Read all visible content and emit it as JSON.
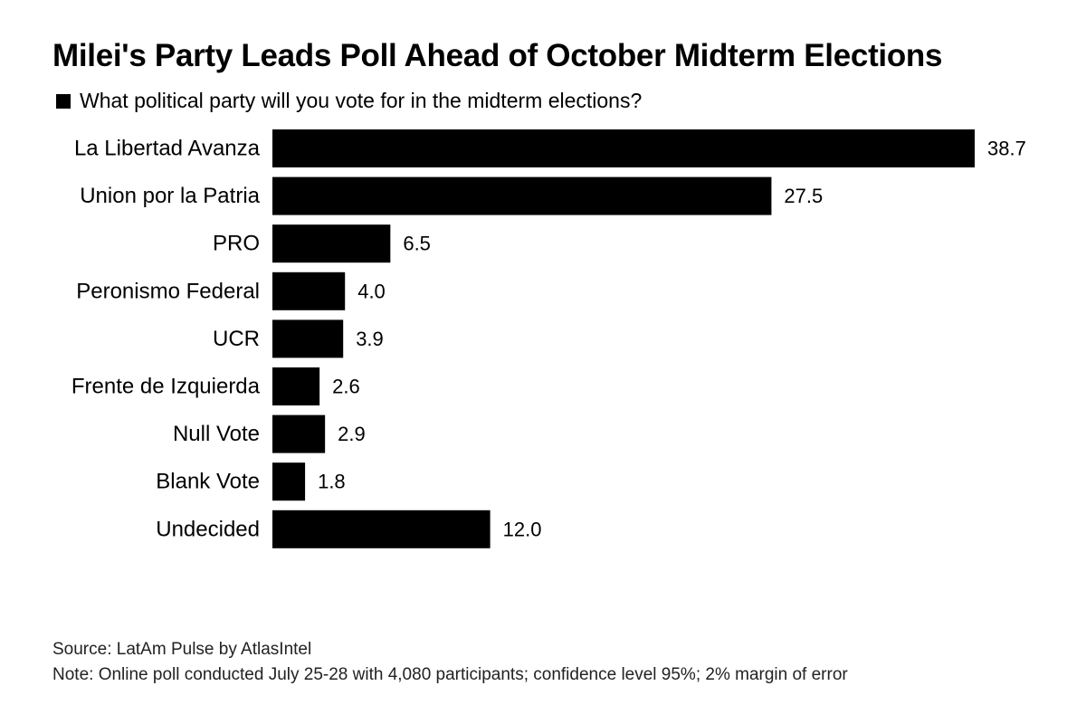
{
  "chart_data": {
    "type": "bar",
    "orientation": "horizontal",
    "title": "Milei's Party Leads Poll Ahead of October Midterm Elections",
    "legend": {
      "label": "What political party will you vote for in the midterm elections?",
      "color": "#000000",
      "placement": "top-left"
    },
    "categories": [
      "La Libertad Avanza",
      "Union por la Patria",
      "PRO",
      "Peronismo Federal",
      "UCR",
      "Frente de Izquierda",
      "Null Vote",
      "Blank Vote",
      "Undecided"
    ],
    "values": [
      38.7,
      27.5,
      6.5,
      4.0,
      3.9,
      2.6,
      2.9,
      1.8,
      12.0
    ],
    "value_labels": [
      "38.7",
      "27.5",
      "6.5",
      "4.0",
      "3.9",
      "2.6",
      "2.9",
      "1.8",
      "12.0"
    ],
    "xlim": [
      0,
      38.7
    ],
    "bar_color": "#000000",
    "grid": false
  },
  "footer": {
    "source": "Source: LatAm Pulse by AtlasIntel",
    "note": "Note: Online poll conducted July 25-28 with 4,080 participants; confidence level 95%; 2% margin of error"
  }
}
